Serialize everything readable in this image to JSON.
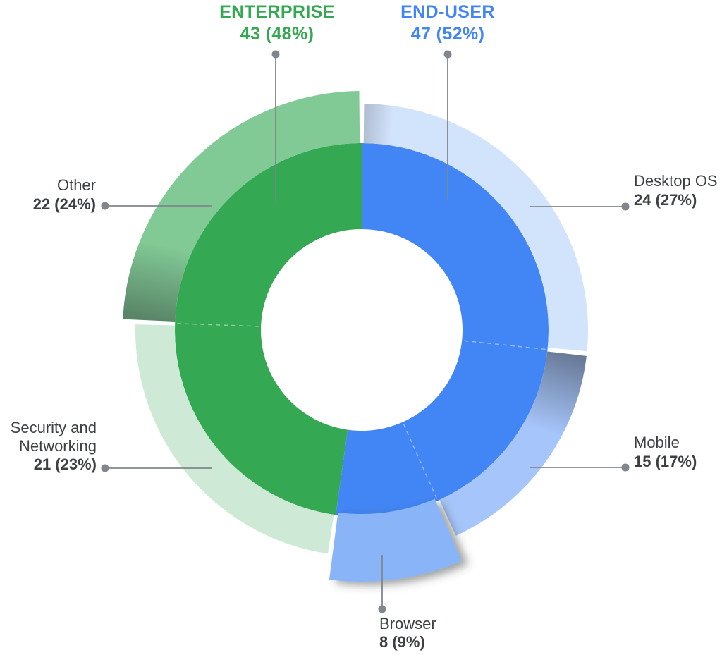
{
  "chart_data": {
    "type": "pie",
    "subtype": "nested-donut",
    "title": "",
    "total": 90,
    "direction": "clockwise",
    "start_angle_deg": 0,
    "legend_position": "callouts",
    "grid": false,
    "inner_series": [
      {
        "name": "END-USER",
        "value": 47,
        "display": "47 (52%)",
        "color": "#4285f4"
      },
      {
        "name": "ENTERPRISE",
        "value": 43,
        "display": "43 (48%)",
        "color": "#34a853"
      }
    ],
    "outer_series": [
      {
        "name": "Desktop OS",
        "value": 24,
        "display": "24 (27%)",
        "color": "#d2e3fc",
        "parent": "END-USER",
        "raised": false
      },
      {
        "name": "Mobile",
        "value": 15,
        "display": "15 (17%)",
        "color": "#a6c5fa",
        "parent": "END-USER",
        "raised": false
      },
      {
        "name": "Browser",
        "value": 8,
        "display": "8 (9%)",
        "color": "#8ab4f8",
        "parent": "END-USER",
        "raised": true
      },
      {
        "name": "Security and Networking",
        "value": 21,
        "display": "21 (23%)",
        "color": "#ceead6",
        "parent": "ENTERPRISE",
        "raised": false
      },
      {
        "name": "Other",
        "value": 22,
        "display": "22 (24%)",
        "color": "#81c995",
        "parent": "ENTERPRISE",
        "raised": true
      }
    ],
    "colors": {
      "leader_line": "#80868b",
      "leader_dot": "#80868b",
      "label_text": "#3c4043",
      "enterprise_label": "#34a853",
      "end_user_label": "#4285f4",
      "background": "#ffffff"
    }
  }
}
